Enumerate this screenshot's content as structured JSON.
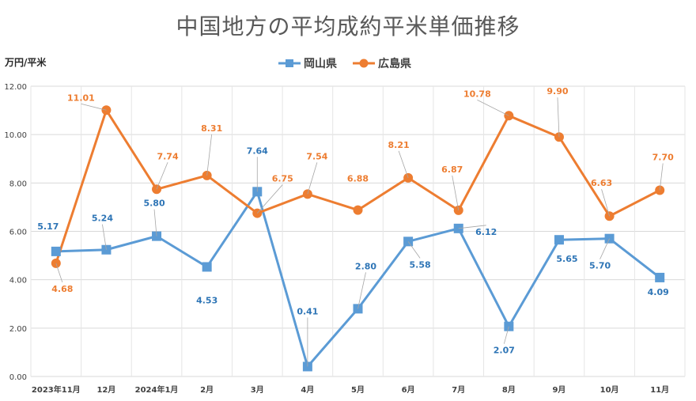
{
  "chart_data": {
    "type": "line",
    "title": "中国地方の平均成約平米単価推移",
    "ylabel": "万円/平米",
    "xlabel": "",
    "ylim": [
      0,
      12
    ],
    "yticks": [
      "0.00",
      "2.00",
      "4.00",
      "6.00",
      "8.00",
      "10.00",
      "12.00"
    ],
    "grid": true,
    "legend_position": "top-center",
    "categories": [
      "2023年11月",
      "12月",
      "2024年1月",
      "2月",
      "3月",
      "4月",
      "5月",
      "6月",
      "7月",
      "8月",
      "9月",
      "10月",
      "11月"
    ],
    "series": [
      {
        "name": "岡山県",
        "color": "#5b9bd5",
        "label_color": "#2e75b6",
        "marker": "square",
        "values": [
          5.17,
          5.24,
          5.8,
          4.53,
          7.64,
          0.41,
          2.8,
          5.58,
          6.12,
          2.07,
          5.65,
          5.7,
          4.09
        ],
        "labels": [
          "5.17",
          "5.24",
          "5.80",
          "4.53",
          "7.64",
          "0.41",
          "2.80",
          "5.58",
          "6.12",
          "2.07",
          "5.65",
          "5.70",
          "4.09"
        ]
      },
      {
        "name": "広島県",
        "color": "#ed7d31",
        "label_color": "#ed7d31",
        "marker": "circle",
        "values": [
          4.68,
          11.01,
          7.74,
          8.31,
          6.75,
          7.54,
          6.88,
          8.21,
          6.87,
          10.78,
          9.9,
          6.63,
          7.7
        ],
        "labels": [
          "4.68",
          "11.01",
          "7.74",
          "8.31",
          "6.75",
          "7.54",
          "6.88",
          "8.21",
          "6.87",
          "10.78",
          "9.90",
          "6.63",
          "7.70"
        ]
      }
    ]
  }
}
